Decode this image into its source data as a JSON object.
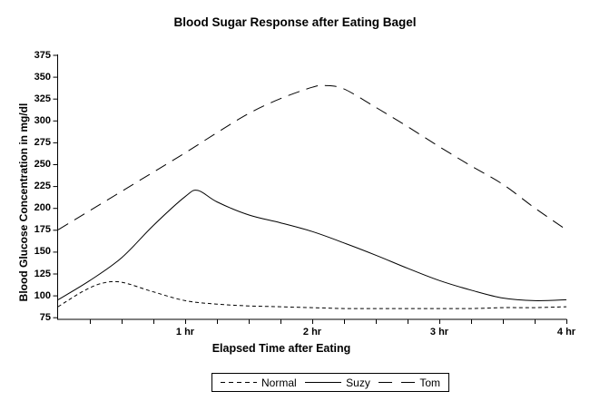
{
  "chart_data": {
    "type": "line",
    "title": "Blood Sugar Response after Eating Bagel",
    "xlabel": "Elapsed Time after Eating",
    "ylabel": "Blood Glucose Concentration in mg/dl",
    "xlim": [
      0,
      4
    ],
    "ylim": [
      75,
      375
    ],
    "yticks": [
      75,
      100,
      125,
      150,
      175,
      200,
      225,
      250,
      275,
      300,
      325,
      350,
      375
    ],
    "minor_xtick_step_hr": 0.25,
    "xtick_labels": [
      {
        "x": 1,
        "label": "1 hr"
      },
      {
        "x": 2,
        "label": "2 hr"
      },
      {
        "x": 3,
        "label": "3 hr"
      },
      {
        "x": 4,
        "label": "4 hr"
      }
    ],
    "grid": false,
    "legend_position": "bottom",
    "line_color": "#000000",
    "background_color": "#ffffff",
    "series": [
      {
        "name": "Normal",
        "line_style": "short-dash",
        "x": [
          0,
          0.2,
          0.35,
          0.5,
          0.75,
          1,
          1.25,
          1.5,
          1.75,
          2,
          2.25,
          2.5,
          2.75,
          3,
          3.25,
          3.5,
          3.75,
          4
        ],
        "y": [
          87,
          105,
          114,
          115,
          104,
          94,
          90,
          88,
          87,
          86,
          85,
          85,
          85,
          85,
          85,
          86,
          86,
          87
        ]
      },
      {
        "name": "Suzy",
        "line_style": "solid",
        "x": [
          0,
          0.25,
          0.5,
          0.75,
          1,
          1.1,
          1.25,
          1.5,
          1.75,
          2,
          2.25,
          2.5,
          2.75,
          3,
          3.25,
          3.5,
          3.75,
          4
        ],
        "y": [
          95,
          117,
          143,
          180,
          213,
          220,
          207,
          192,
          183,
          173,
          160,
          146,
          131,
          117,
          106,
          97,
          94,
          95
        ]
      },
      {
        "name": "Tom",
        "line_style": "long-dash",
        "x": [
          0,
          0.25,
          0.5,
          0.75,
          1,
          1.25,
          1.5,
          1.75,
          2,
          2.1,
          2.25,
          2.5,
          2.75,
          3,
          3.25,
          3.5,
          3.75,
          4
        ],
        "y": [
          175,
          197,
          219,
          241,
          263,
          286,
          308,
          325,
          338,
          340,
          336,
          315,
          293,
          270,
          248,
          227,
          200,
          175
        ]
      }
    ]
  }
}
